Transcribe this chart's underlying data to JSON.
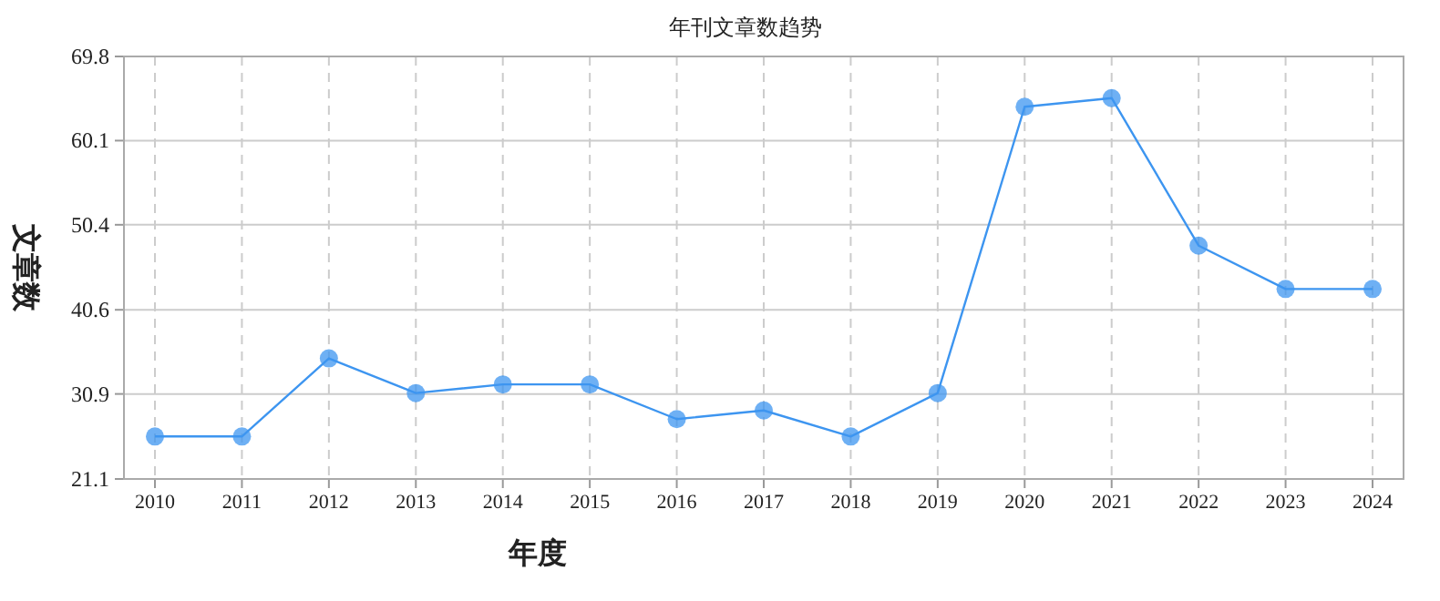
{
  "chart_data": {
    "type": "line",
    "title": "年刊文章数趋势",
    "xlabel": "年度",
    "ylabel": "文章数",
    "categories": [
      "2010",
      "2011",
      "2012",
      "2013",
      "2014",
      "2015",
      "2016",
      "2017",
      "2018",
      "2019",
      "2020",
      "2021",
      "2022",
      "2023",
      "2024"
    ],
    "series": [
      {
        "color": "#3d95f0",
        "values": [
          26,
          26,
          35,
          31,
          32,
          32,
          28,
          29,
          26,
          31,
          64,
          65,
          48,
          43,
          43
        ]
      }
    ],
    "ylim": [
      21.1,
      69.8
    ],
    "yticks": [
      21.1,
      30.9,
      40.6,
      50.4,
      60.1,
      69.8
    ],
    "grid": true,
    "marker": "circle",
    "line_style": "solid"
  }
}
